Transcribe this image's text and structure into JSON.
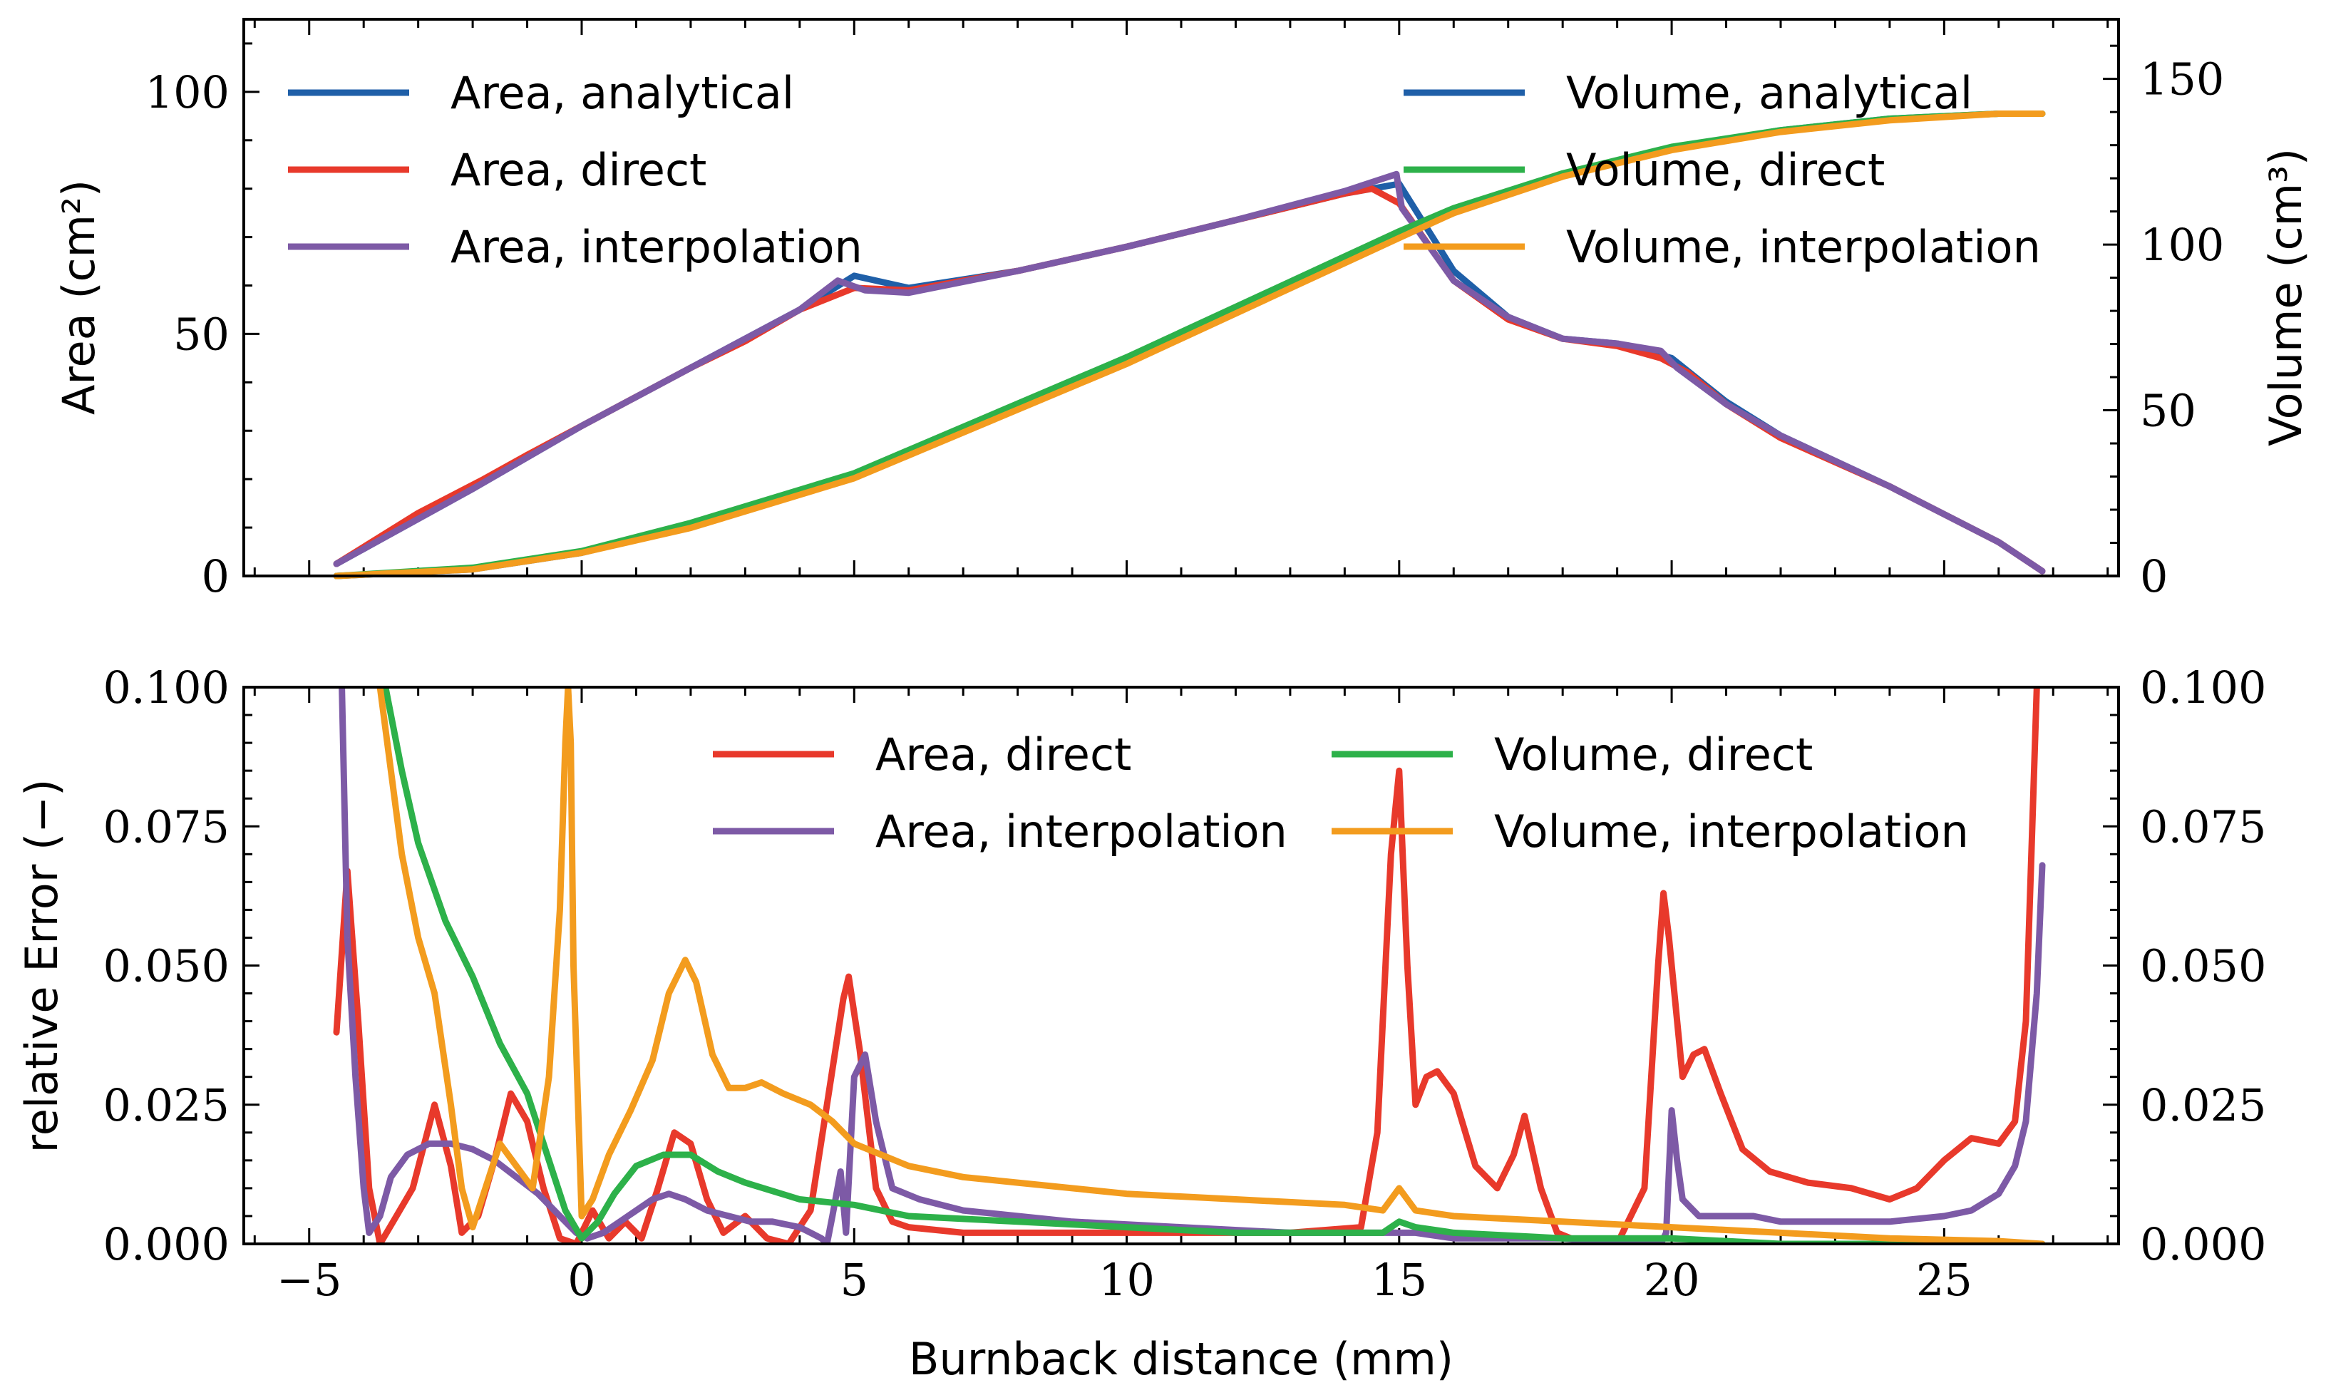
{
  "colors": {
    "analytical": "#1f5fa8",
    "direct_area": "#e8392b",
    "interp_area": "#7d5aa6",
    "direct_vol": "#2db14a",
    "interp_vol": "#f39c1e"
  },
  "x_axis": {
    "label": "Burnback distance (mm)",
    "ticks": [
      "−5",
      "0",
      "5",
      "10",
      "15",
      "20",
      "25"
    ],
    "range": [
      -6.2,
      28.2
    ]
  },
  "chart_data": [
    {
      "type": "line",
      "panel": "top",
      "ylabel": "Area (cm²)",
      "ylabel2": "Volume (cm³)",
      "ylim": [
        0,
        115
      ],
      "ylim2": [
        0,
        168
      ],
      "yticks": [
        "0",
        "50",
        "100"
      ],
      "yticks2": [
        "0",
        "50",
        "100",
        "150"
      ],
      "legend_left": [
        "Area, analytical",
        "Area, direct",
        "Area, interpolation"
      ],
      "legend_right": [
        "Volume, analytical",
        "Volume, direct",
        "Volume, interpolation"
      ],
      "series": [
        {
          "name": "Area, analytical",
          "axis": "left",
          "color": "#1f5fa8",
          "x": [
            -4.5,
            -2,
            0,
            2,
            4,
            5,
            6,
            8,
            10,
            12,
            14,
            15,
            16,
            17,
            18,
            19,
            20,
            21,
            22,
            24,
            26,
            26.8
          ],
          "y": [
            2.5,
            18,
            31,
            43,
            55,
            62,
            59.5,
            63,
            68,
            73.5,
            79,
            81,
            63,
            53.5,
            49,
            48,
            45,
            36,
            29,
            18.5,
            7,
            1
          ]
        },
        {
          "name": "Area, direct",
          "axis": "left",
          "color": "#e8392b",
          "x": [
            -4.5,
            -3,
            -1.8,
            -1,
            0,
            1,
            2,
            3,
            4,
            5,
            6,
            8,
            10,
            12,
            14,
            14.5,
            15,
            16,
            17,
            18,
            19,
            19.8,
            20.3,
            21,
            22,
            24,
            26,
            26.8
          ],
          "y": [
            2.5,
            13,
            20,
            25,
            31,
            37,
            43,
            48.5,
            55,
            59.5,
            59,
            63,
            68,
            73.5,
            79,
            80,
            77,
            61,
            53,
            49,
            47.5,
            45,
            42,
            35.5,
            28.5,
            18.5,
            7,
            1
          ]
        },
        {
          "name": "Area, interpolation",
          "axis": "left",
          "color": "#7d5aa6",
          "x": [
            -4.5,
            -2,
            0,
            2,
            4,
            4.7,
            5.2,
            6,
            8,
            10,
            12,
            14,
            14.95,
            15.05,
            16,
            17,
            18,
            19,
            19.8,
            20.1,
            21,
            22,
            24,
            26,
            26.8
          ],
          "y": [
            2.5,
            18,
            31,
            43,
            55,
            61,
            59,
            58.5,
            63,
            68,
            73.5,
            79.5,
            83,
            76,
            61,
            53.5,
            49,
            48,
            46.5,
            43,
            35.5,
            29,
            18.5,
            7,
            1
          ]
        },
        {
          "name": "Volume, analytical",
          "axis": "right",
          "color": "#1f5fa8",
          "x": [
            -4.5,
            -2,
            0,
            2,
            5,
            10,
            15,
            16,
            18,
            20,
            22,
            24,
            26,
            26.8
          ],
          "y": [
            0,
            2,
            7,
            15,
            30,
            65,
            103,
            110,
            121,
            129,
            134.5,
            138,
            139.5,
            139.5
          ]
        },
        {
          "name": "Volume, direct",
          "axis": "right",
          "color": "#2db14a",
          "x": [
            -4.5,
            -2,
            0,
            2,
            5,
            10,
            15,
            16,
            18,
            20,
            22,
            24,
            26,
            26.8
          ],
          "y": [
            0,
            2.5,
            7.5,
            16,
            31,
            66,
            104,
            111,
            121.5,
            129.5,
            134.5,
            138,
            139.5,
            139.5
          ]
        },
        {
          "name": "Volume, interpolation",
          "axis": "right",
          "color": "#f39c1e",
          "x": [
            -4.5,
            -2,
            0,
            2,
            5,
            10,
            15,
            16,
            18,
            20,
            22,
            24,
            26,
            26.8
          ],
          "y": [
            0,
            2,
            7,
            14.5,
            29.5,
            64,
            102,
            109.5,
            120.5,
            128.5,
            134,
            137.5,
            139.5,
            139.5
          ]
        }
      ]
    },
    {
      "type": "line",
      "panel": "bottom",
      "ylabel": "relative Error (−)",
      "ylim": [
        0,
        0.1
      ],
      "yticks": [
        "0.000",
        "0.025",
        "0.050",
        "0.075",
        "0.100"
      ],
      "legend": [
        "Area, direct",
        "Area, interpolation",
        "Volume, direct",
        "Volume, interpolation"
      ],
      "series": [
        {
          "name": "Area, direct",
          "color": "#e8392b",
          "x": [
            -4.5,
            -4.3,
            -4.1,
            -3.9,
            -3.7,
            -3.4,
            -3.1,
            -2.7,
            -2.4,
            -2.2,
            -1.9,
            -1.6,
            -1.3,
            -1.0,
            -0.7,
            -0.4,
            -0.1,
            0.2,
            0.5,
            0.8,
            1.1,
            1.4,
            1.7,
            2.0,
            2.3,
            2.6,
            3.0,
            3.4,
            3.8,
            4.2,
            4.5,
            4.8,
            4.9,
            5.1,
            5.4,
            5.7,
            6.0,
            7,
            9,
            11,
            13,
            14.3,
            14.6,
            14.85,
            15.0,
            15.15,
            15.3,
            15.5,
            15.7,
            16.0,
            16.4,
            16.8,
            17.1,
            17.3,
            17.6,
            17.9,
            18.4,
            19.0,
            19.5,
            19.75,
            19.85,
            19.95,
            20.2,
            20.4,
            20.6,
            20.9,
            21.3,
            21.8,
            22.5,
            23.3,
            24.0,
            24.5,
            25.0,
            25.5,
            26.0,
            26.3,
            26.5,
            26.6,
            26.7
          ],
          "y": [
            0.038,
            0.067,
            0.04,
            0.01,
            0.0,
            0.005,
            0.01,
            0.025,
            0.014,
            0.002,
            0.005,
            0.015,
            0.027,
            0.022,
            0.01,
            0.001,
            0.0,
            0.006,
            0.001,
            0.004,
            0.001,
            0.01,
            0.02,
            0.018,
            0.008,
            0.002,
            0.005,
            0.001,
            0.0,
            0.006,
            0.025,
            0.044,
            0.048,
            0.035,
            0.01,
            0.004,
            0.003,
            0.002,
            0.002,
            0.002,
            0.002,
            0.003,
            0.02,
            0.07,
            0.085,
            0.05,
            0.025,
            0.03,
            0.031,
            0.027,
            0.014,
            0.01,
            0.016,
            0.023,
            0.01,
            0.002,
            0.0,
            0.0,
            0.01,
            0.05,
            0.063,
            0.055,
            0.03,
            0.034,
            0.035,
            0.027,
            0.017,
            0.013,
            0.011,
            0.01,
            0.008,
            0.01,
            0.015,
            0.019,
            0.018,
            0.022,
            0.04,
            0.07,
            0.1
          ]
        },
        {
          "name": "Area, interpolation",
          "color": "#7d5aa6",
          "x": [
            -4.4,
            -4.3,
            -4.15,
            -4.0,
            -3.9,
            -3.7,
            -3.5,
            -3.2,
            -2.8,
            -2.4,
            -2.0,
            -1.6,
            -1.2,
            -0.8,
            -0.4,
            -0.1,
            0.1,
            0.4,
            0.7,
            1.0,
            1.3,
            1.6,
            1.9,
            2.3,
            2.7,
            3.1,
            3.5,
            4.0,
            4.2,
            4.4,
            4.5,
            4.6,
            4.75,
            4.85,
            5.0,
            5.2,
            5.4,
            5.7,
            6.2,
            7,
            9,
            11,
            13,
            14.5,
            15.0,
            15.3,
            16,
            17,
            18,
            19,
            19.8,
            19.9,
            20.0,
            20.1,
            20.2,
            20.5,
            21,
            21.5,
            22,
            23,
            24,
            25,
            25.5,
            26.0,
            26.3,
            26.5,
            26.7,
            26.8
          ],
          "y": [
            0.1,
            0.055,
            0.03,
            0.01,
            0.002,
            0.005,
            0.012,
            0.016,
            0.018,
            0.018,
            0.017,
            0.015,
            0.012,
            0.009,
            0.005,
            0.002,
            0.001,
            0.002,
            0.004,
            0.006,
            0.008,
            0.009,
            0.008,
            0.006,
            0.005,
            0.004,
            0.004,
            0.003,
            0.002,
            0.001,
            0.0,
            0.005,
            0.013,
            0.002,
            0.03,
            0.034,
            0.022,
            0.01,
            0.008,
            0.006,
            0.004,
            0.003,
            0.002,
            0.002,
            0.002,
            0.002,
            0.001,
            0.001,
            0.001,
            0.0,
            0.0,
            0.002,
            0.024,
            0.015,
            0.008,
            0.005,
            0.005,
            0.005,
            0.004,
            0.004,
            0.004,
            0.005,
            0.006,
            0.009,
            0.014,
            0.022,
            0.045,
            0.068
          ]
        },
        {
          "name": "Volume, direct",
          "color": "#2db14a",
          "x": [
            -3.6,
            -3.3,
            -3.0,
            -2.5,
            -2.0,
            -1.5,
            -1.0,
            -0.6,
            -0.3,
            0.0,
            0.3,
            0.6,
            1.0,
            1.5,
            2.0,
            2.5,
            3,
            4,
            5,
            6,
            8,
            10,
            12,
            14,
            14.7,
            15.0,
            15.3,
            16,
            18,
            20,
            22,
            24,
            26,
            26.8
          ],
          "y": [
            0.1,
            0.085,
            0.072,
            0.058,
            0.048,
            0.036,
            0.027,
            0.015,
            0.006,
            0.001,
            0.004,
            0.009,
            0.014,
            0.016,
            0.016,
            0.013,
            0.011,
            0.008,
            0.007,
            0.005,
            0.004,
            0.003,
            0.002,
            0.002,
            0.002,
            0.004,
            0.003,
            0.002,
            0.001,
            0.001,
            0.0,
            0.0,
            0.0,
            0.0
          ]
        },
        {
          "name": "Volume, interpolation",
          "color": "#f39c1e",
          "x": [
            -3.7,
            -3.5,
            -3.3,
            -3.0,
            -2.7,
            -2.4,
            -2.2,
            -2.0,
            -1.7,
            -1.5,
            -1.2,
            -0.9,
            -0.6,
            -0.4,
            -0.3,
            -0.25,
            -0.2,
            -0.15,
            0.0,
            0.2,
            0.5,
            0.9,
            1.3,
            1.6,
            1.9,
            2.1,
            2.4,
            2.7,
            3.0,
            3.3,
            3.7,
            4.2,
            4.6,
            5.0,
            5.5,
            6,
            7,
            8,
            10,
            12,
            14,
            14.7,
            15.0,
            15.3,
            16,
            18,
            20,
            22,
            24,
            26,
            26.8
          ],
          "y": [
            0.1,
            0.085,
            0.07,
            0.055,
            0.045,
            0.025,
            0.01,
            0.003,
            0.012,
            0.018,
            0.014,
            0.01,
            0.03,
            0.06,
            0.09,
            0.1,
            0.09,
            0.05,
            0.005,
            0.008,
            0.016,
            0.024,
            0.033,
            0.045,
            0.051,
            0.047,
            0.034,
            0.028,
            0.028,
            0.029,
            0.027,
            0.025,
            0.022,
            0.018,
            0.016,
            0.014,
            0.012,
            0.011,
            0.009,
            0.008,
            0.007,
            0.006,
            0.01,
            0.006,
            0.005,
            0.004,
            0.003,
            0.002,
            0.001,
            0.0005,
            0.0
          ]
        }
      ]
    }
  ]
}
